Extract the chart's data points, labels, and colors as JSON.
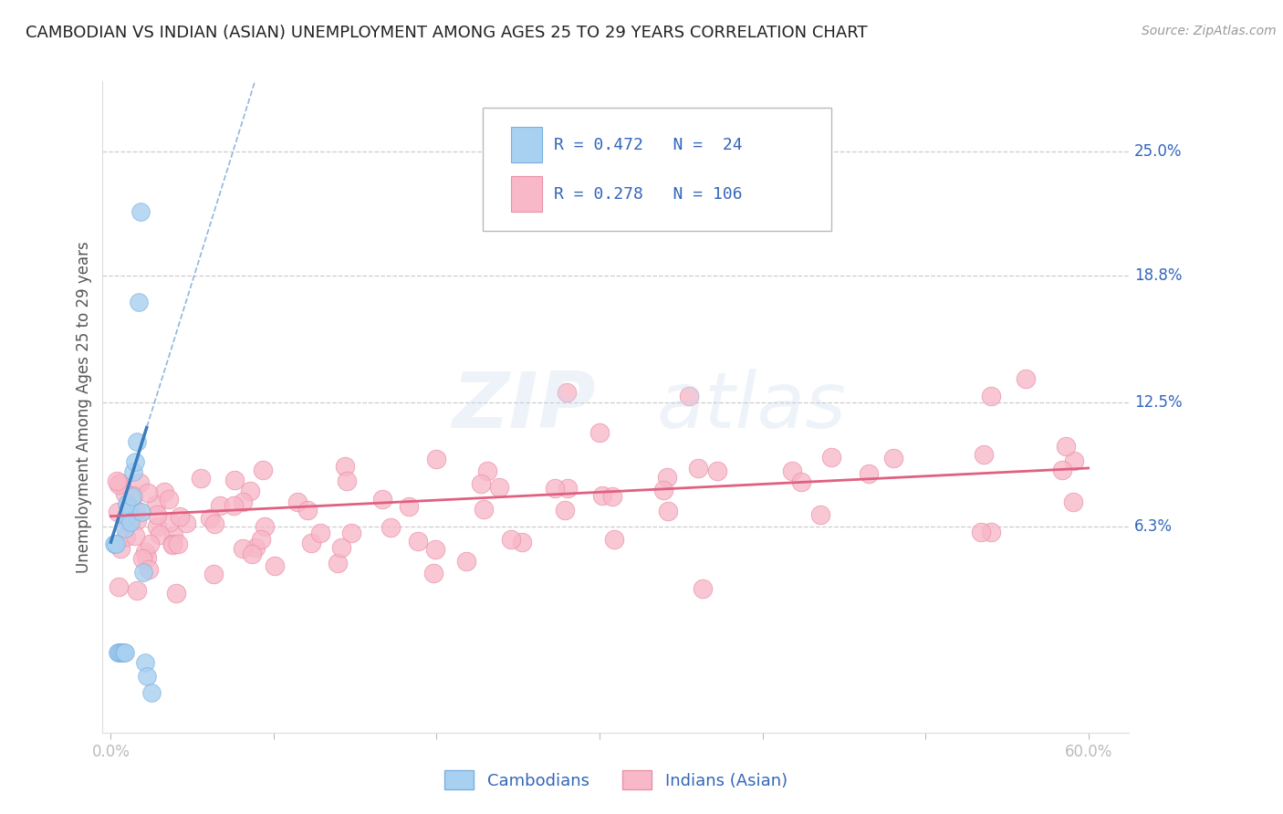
{
  "title": "CAMBODIAN VS INDIAN (ASIAN) UNEMPLOYMENT AMONG AGES 25 TO 29 YEARS CORRELATION CHART",
  "source": "Source: ZipAtlas.com",
  "ylabel": "Unemployment Among Ages 25 to 29 years",
  "xlim": [
    -0.005,
    0.625
  ],
  "ylim": [
    -0.04,
    0.285
  ],
  "ytick_vals": [
    0.063,
    0.125,
    0.188,
    0.25
  ],
  "ytick_labels": [
    "6.3%",
    "12.5%",
    "18.8%",
    "25.0%"
  ],
  "xtick_vals": [
    0.0,
    0.1,
    0.2,
    0.3,
    0.4,
    0.5,
    0.6
  ],
  "xtick_labels": [
    "0.0%",
    "",
    "",
    "",
    "",
    "",
    "60.0%"
  ],
  "cambodian_color": "#a8d0f0",
  "cambodian_edge": "#7ab0e0",
  "indian_color": "#f8b8c8",
  "indian_edge": "#e890a8",
  "cambodian_R": 0.472,
  "cambodian_N": 24,
  "indian_R": 0.278,
  "indian_N": 106,
  "legend_label1": "Cambodians",
  "legend_label2": "Indians (Asian)",
  "blue_line_color": "#3a7cc0",
  "pink_line_color": "#e06080",
  "grid_color": "#cccccc",
  "text_dark": "#222222",
  "text_blue": "#3366bb",
  "text_pink": "#e06080"
}
